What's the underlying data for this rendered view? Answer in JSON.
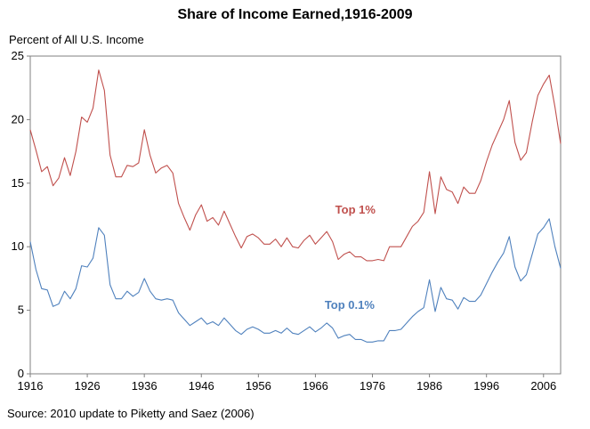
{
  "title": "Share of Income Earned,1916-2009",
  "y_axis_label": "Percent of All U.S. Income",
  "source": "Source: 2010 update to Piketty and Saez (2006)",
  "chart_data": {
    "type": "line",
    "title": "Share of Income Earned,1916-2009",
    "ylabel": "Percent of All U.S. Income",
    "xlabel": "",
    "xlim": [
      1916,
      2009
    ],
    "ylim": [
      0,
      25
    ],
    "x_ticks": [
      1916,
      1926,
      1936,
      1946,
      1956,
      1966,
      1976,
      1986,
      1996,
      2006
    ],
    "y_ticks": [
      0,
      5,
      10,
      15,
      20,
      25
    ],
    "grid": false,
    "x": [
      1916,
      1917,
      1918,
      1919,
      1920,
      1921,
      1922,
      1923,
      1924,
      1925,
      1926,
      1927,
      1928,
      1929,
      1930,
      1931,
      1932,
      1933,
      1934,
      1935,
      1936,
      1937,
      1938,
      1939,
      1940,
      1941,
      1942,
      1943,
      1944,
      1945,
      1946,
      1947,
      1948,
      1949,
      1950,
      1951,
      1952,
      1953,
      1954,
      1955,
      1956,
      1957,
      1958,
      1959,
      1960,
      1961,
      1962,
      1963,
      1964,
      1965,
      1966,
      1967,
      1968,
      1969,
      1970,
      1971,
      1972,
      1973,
      1974,
      1975,
      1976,
      1977,
      1978,
      1979,
      1980,
      1981,
      1982,
      1983,
      1984,
      1985,
      1986,
      1987,
      1988,
      1989,
      1990,
      1991,
      1992,
      1993,
      1994,
      1995,
      1996,
      1997,
      1998,
      1999,
      2000,
      2001,
      2002,
      2003,
      2004,
      2005,
      2006,
      2007,
      2008,
      2009
    ],
    "series": [
      {
        "name": "Top 1%",
        "color": "#c0504d",
        "values": [
          19.2,
          17.6,
          15.9,
          16.3,
          14.8,
          15.4,
          17.0,
          15.6,
          17.5,
          20.2,
          19.8,
          20.9,
          23.9,
          22.3,
          17.2,
          15.5,
          15.5,
          16.4,
          16.3,
          16.6,
          19.2,
          17.2,
          15.8,
          16.2,
          16.4,
          15.8,
          13.4,
          12.3,
          11.3,
          12.5,
          13.3,
          12.0,
          12.3,
          11.7,
          12.8,
          11.8,
          10.8,
          9.9,
          10.8,
          11.0,
          10.7,
          10.2,
          10.2,
          10.6,
          10.0,
          10.7,
          10.0,
          9.9,
          10.5,
          10.9,
          10.2,
          10.7,
          11.2,
          10.4,
          9.0,
          9.4,
          9.6,
          9.2,
          9.2,
          8.9,
          8.9,
          9.0,
          8.9,
          10.0,
          10.0,
          10.0,
          10.8,
          11.6,
          12.0,
          12.7,
          15.9,
          12.6,
          15.5,
          14.5,
          14.3,
          13.4,
          14.7,
          14.2,
          14.2,
          15.2,
          16.7,
          18.0,
          19.0,
          20.0,
          21.5,
          18.2,
          16.8,
          17.4,
          19.8,
          21.9,
          22.8,
          23.5,
          21.0,
          18.1
        ]
      },
      {
        "name": "Top 0.1%",
        "color": "#4f81bd",
        "values": [
          10.4,
          8.2,
          6.7,
          6.6,
          5.3,
          5.5,
          6.5,
          5.9,
          6.7,
          8.5,
          8.4,
          9.1,
          11.5,
          10.9,
          7.0,
          5.9,
          5.9,
          6.5,
          6.1,
          6.4,
          7.5,
          6.5,
          5.9,
          5.8,
          5.9,
          5.8,
          4.8,
          4.3,
          3.8,
          4.1,
          4.4,
          3.9,
          4.1,
          3.8,
          4.4,
          3.9,
          3.4,
          3.1,
          3.5,
          3.7,
          3.5,
          3.2,
          3.2,
          3.4,
          3.2,
          3.6,
          3.2,
          3.1,
          3.4,
          3.7,
          3.3,
          3.6,
          4.0,
          3.6,
          2.8,
          3.0,
          3.1,
          2.7,
          2.7,
          2.5,
          2.5,
          2.6,
          2.6,
          3.4,
          3.4,
          3.5,
          4.0,
          4.5,
          4.9,
          5.2,
          7.4,
          4.9,
          6.8,
          5.9,
          5.8,
          5.1,
          6.0,
          5.7,
          5.7,
          6.2,
          7.1,
          8.0,
          8.8,
          9.5,
          10.8,
          8.4,
          7.3,
          7.8,
          9.4,
          11.0,
          11.5,
          12.2,
          10.0,
          8.3
        ]
      }
    ],
    "annotations": [
      {
        "text": "Top 1%",
        "color": "#c0504d",
        "x": 1973,
        "y": 12.6
      },
      {
        "text": "Top 0.1%",
        "color": "#4f81bd",
        "x": 1972,
        "y": 5.1
      }
    ]
  }
}
